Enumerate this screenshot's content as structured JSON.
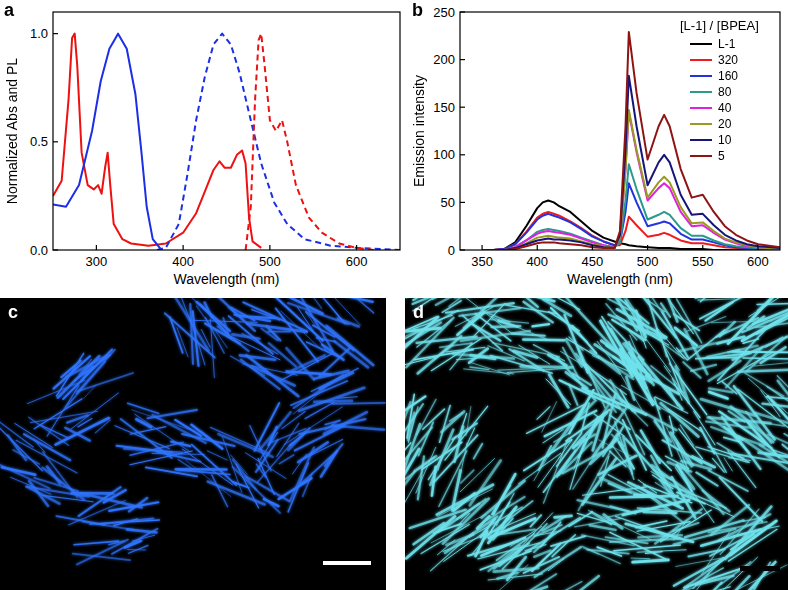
{
  "chart_data": [
    {
      "type": "line",
      "panel_label": "a",
      "xlabel": "Wavelength (nm)",
      "ylabel": "Normalized Abs and PL",
      "xlim": [
        250,
        650
      ],
      "ylim": [
        0,
        1.1
      ],
      "xticks": [
        300,
        400,
        500,
        600
      ],
      "yticks": [
        {
          "value": 0,
          "label": "0.0"
        },
        0.5,
        {
          "value": 1,
          "label": "1.0"
        }
      ],
      "series": [
        {
          "color": "#ee1111",
          "line_style": "solid",
          "x": [
            250,
            260,
            268,
            272,
            275,
            278,
            283,
            290,
            297,
            302,
            306,
            310,
            313,
            316,
            320,
            330,
            340,
            360,
            380,
            400,
            415,
            425,
            435,
            442,
            448,
            455,
            462,
            468,
            472,
            476,
            480,
            490
          ],
          "values": [
            0.25,
            0.32,
            0.7,
            0.98,
            1.0,
            0.85,
            0.45,
            0.3,
            0.28,
            0.3,
            0.26,
            0.38,
            0.45,
            0.3,
            0.12,
            0.05,
            0.03,
            0.02,
            0.03,
            0.08,
            0.17,
            0.27,
            0.37,
            0.41,
            0.38,
            0.38,
            0.44,
            0.46,
            0.4,
            0.15,
            0.04,
            0.01
          ]
        },
        {
          "color": "#1c2ee6",
          "line_style": "solid",
          "x": [
            250,
            265,
            280,
            295,
            305,
            315,
            325,
            335,
            345,
            352,
            358,
            365,
            375
          ],
          "values": [
            0.21,
            0.2,
            0.3,
            0.55,
            0.78,
            0.93,
            1.0,
            0.93,
            0.72,
            0.45,
            0.2,
            0.05,
            0
          ]
        },
        {
          "color": "#1c2ee6",
          "line_style": "dashed",
          "x": [
            370,
            380,
            395,
            405,
            415,
            425,
            435,
            445,
            455,
            465,
            475,
            490,
            505,
            520,
            540,
            570,
            600,
            650
          ],
          "values": [
            0,
            0.01,
            0.12,
            0.35,
            0.6,
            0.8,
            0.95,
            1.0,
            0.95,
            0.82,
            0.65,
            0.4,
            0.22,
            0.12,
            0.05,
            0.02,
            0.01,
            0
          ]
        },
        {
          "color": "#ee1111",
          "line_style": "dashed",
          "x": [
            472,
            478,
            483,
            487,
            490,
            494,
            500,
            507,
            514,
            520,
            530,
            545,
            560,
            580,
            600,
            620
          ],
          "values": [
            0,
            0.2,
            0.7,
            0.97,
            1.0,
            0.85,
            0.6,
            0.55,
            0.6,
            0.5,
            0.3,
            0.15,
            0.08,
            0.03,
            0.01,
            0
          ]
        }
      ]
    },
    {
      "type": "line",
      "panel_label": "b",
      "xlabel": "Wavelength (nm)",
      "ylabel": "Emission intensity",
      "xlim": [
        330,
        620
      ],
      "ylim": [
        0,
        250
      ],
      "xticks": [
        350,
        400,
        450,
        500,
        550,
        600
      ],
      "yticks": [
        0,
        50,
        100,
        150,
        200,
        250
      ],
      "legend": "upper right",
      "legend_title": "[L-1] / [BPEA]",
      "x": [
        350,
        360,
        370,
        380,
        390,
        400,
        405,
        410,
        415,
        420,
        430,
        440,
        450,
        460,
        470,
        475,
        480,
        483,
        490,
        500,
        510,
        515,
        520,
        530,
        540,
        550,
        560,
        570,
        580,
        590,
        600,
        620
      ],
      "series": [
        {
          "name": "L-1",
          "color": "#000000",
          "values": [
            0,
            0,
            1,
            8,
            25,
            44,
            50,
            52,
            50,
            46,
            40,
            30,
            20,
            13,
            9,
            7,
            6,
            5,
            4,
            3,
            2,
            2,
            2,
            1,
            1,
            1,
            0,
            0,
            0,
            0,
            0,
            0
          ]
        },
        {
          "name": "320",
          "color": "#ee1c1c",
          "values": [
            0,
            0,
            1,
            6,
            19,
            34,
            38,
            40,
            38,
            36,
            30,
            23,
            15,
            9,
            5,
            5,
            20,
            35,
            26,
            14,
            16,
            18,
            16,
            10,
            7,
            7,
            5,
            3,
            2,
            1,
            1,
            0
          ]
        },
        {
          "name": "160",
          "color": "#2233dd",
          "values": [
            0,
            0,
            1,
            6,
            18,
            32,
            36,
            38,
            36,
            34,
            29,
            22,
            14,
            9,
            5,
            8,
            40,
            70,
            50,
            25,
            28,
            30,
            28,
            17,
            11,
            11,
            8,
            5,
            3,
            2,
            1,
            0
          ]
        },
        {
          "name": "80",
          "color": "#2a9a8c",
          "values": [
            0,
            0,
            0,
            3,
            10,
            19,
            21,
            22,
            21,
            20,
            17,
            13,
            9,
            5,
            3,
            8,
            52,
            90,
            64,
            32,
            37,
            40,
            37,
            23,
            15,
            15,
            10,
            6,
            4,
            3,
            2,
            1
          ]
        },
        {
          "name": "40",
          "color": "#e020e0",
          "values": [
            0,
            0,
            0,
            3,
            10,
            17,
            19,
            20,
            19,
            18,
            16,
            12,
            8,
            5,
            3,
            13,
            84,
            145,
            103,
            52,
            65,
            70,
            65,
            40,
            25,
            26,
            18,
            11,
            7,
            4,
            3,
            1
          ]
        },
        {
          "name": "20",
          "color": "#9a9a22",
          "values": [
            0,
            0,
            0,
            2,
            7,
            13,
            14,
            15,
            14,
            13,
            12,
            9,
            6,
            4,
            2,
            13,
            85,
            147,
            105,
            55,
            71,
            77,
            71,
            45,
            28,
            29,
            20,
            12,
            8,
            5,
            3,
            1
          ]
        },
        {
          "name": "10",
          "color": "#16167a",
          "values": [
            0,
            0,
            0,
            2,
            6,
            10,
            11,
            12,
            11,
            11,
            10,
            8,
            5,
            3,
            2,
            16,
            105,
            183,
            130,
            68,
            92,
            100,
            92,
            58,
            37,
            38,
            26,
            16,
            10,
            6,
            4,
            2
          ]
        },
        {
          "name": "5",
          "color": "#8e1414",
          "values": [
            0,
            0,
            0,
            1,
            4,
            7,
            8,
            8,
            8,
            7,
            6,
            5,
            3,
            2,
            2,
            20,
            130,
            229,
            165,
            95,
            130,
            142,
            130,
            85,
            55,
            58,
            40,
            25,
            16,
            10,
            6,
            3
          ]
        }
      ]
    }
  ],
  "images": [
    {
      "panel_label": "c",
      "color": "#2f74ff"
    },
    {
      "panel_label": "d",
      "color": "#6fe2ec"
    }
  ]
}
